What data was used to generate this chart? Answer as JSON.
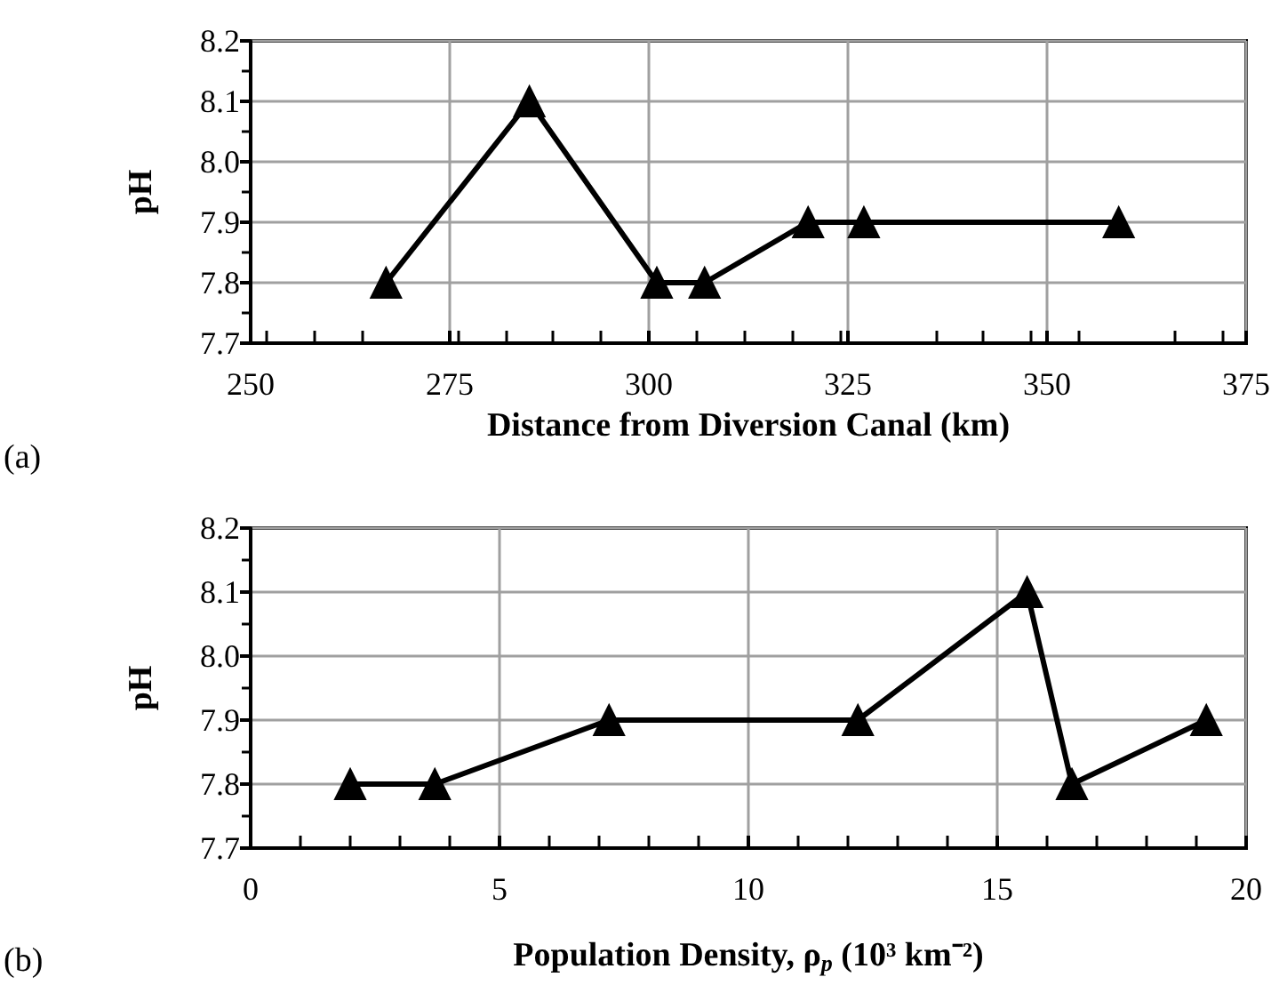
{
  "chart_data": [
    {
      "type": "line",
      "xlabel": "Distance from Diversion Canal (km)",
      "ylabel": "pH",
      "annotations": [
        "(a)"
      ],
      "x": [
        267,
        285,
        301,
        307,
        320,
        327,
        359
      ],
      "series": [
        {
          "color": "#000000",
          "values": [
            7.8,
            8.1,
            7.8,
            7.8,
            7.9,
            7.9,
            7.9
          ]
        }
      ],
      "xlim": [
        250,
        375
      ],
      "xticks": [
        250,
        275,
        300,
        325,
        350,
        375
      ],
      "ylim": [
        7.7,
        8.2
      ],
      "yticks": [
        7.7,
        7.8,
        7.9,
        {
          "value": 8.0,
          "label": "8.0"
        },
        8.1,
        8.2
      ],
      "grid": true,
      "marker": "triangle",
      "line_style": "solid"
    },
    {
      "type": "line",
      "xlabel": "Population Density, ρ$_{p}$ (10³ km⁻²)",
      "ylabel": "pH",
      "annotations": [
        "(b)"
      ],
      "x": [
        2.0,
        3.7,
        7.2,
        12.2,
        15.6,
        16.5,
        19.2
      ],
      "series": [
        {
          "color": "#000000",
          "values": [
            7.8,
            7.8,
            7.9,
            7.9,
            8.1,
            7.8,
            7.9
          ]
        }
      ],
      "xlim": [
        0,
        20
      ],
      "xticks": [
        0,
        5,
        10,
        15,
        20
      ],
      "ylim": [
        7.7,
        8.2
      ],
      "yticks": [
        7.7,
        7.8,
        7.9,
        {
          "value": 8.0,
          "label": "8.0"
        },
        8.1,
        8.2
      ],
      "grid": true,
      "marker": "triangle",
      "line_style": "solid"
    }
  ]
}
